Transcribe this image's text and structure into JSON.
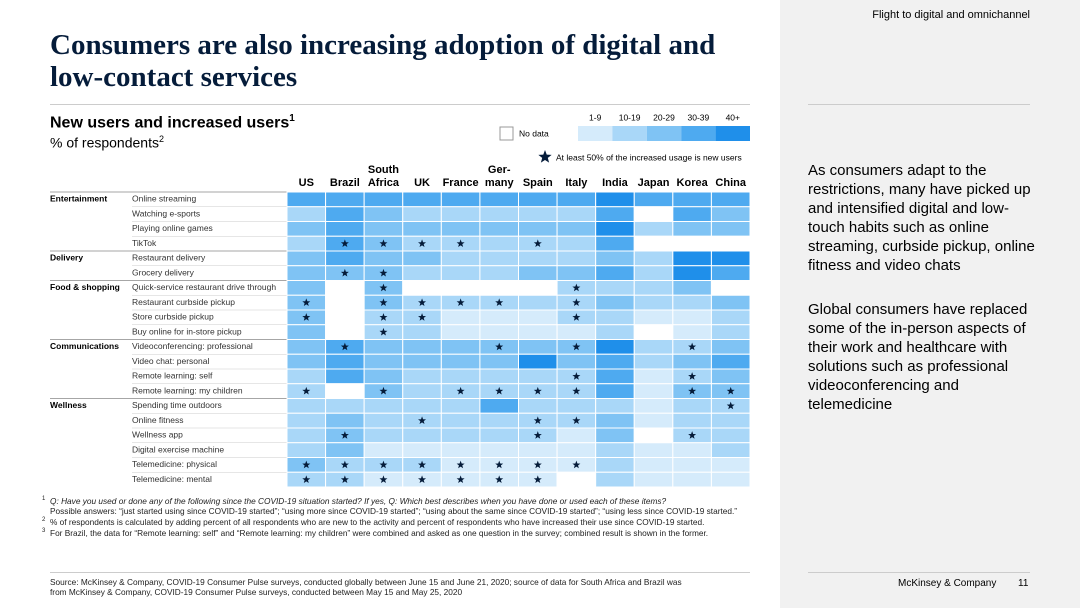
{
  "header": {
    "section": "Flight to digital and omnichannel",
    "title": "Consumers are also increasing adoption of digital and low-contact services"
  },
  "table": {
    "title": "New users and increased users",
    "title_note": "1",
    "subtitle": "% of respondents",
    "subtitle_note": "2",
    "legend": {
      "no_data": "No data",
      "star": "At least 50% of the increased usage is new users",
      "bins": [
        {
          "label": "1-9",
          "color": "#d5ebfb"
        },
        {
          "label": "10-19",
          "color": "#a9d7f8"
        },
        {
          "label": "20-29",
          "color": "#7fc3f4"
        },
        {
          "label": "30-39",
          "color": "#4eaaf0"
        },
        {
          "label": "40+",
          "color": "#1f8fea"
        }
      ]
    },
    "columns": [
      [
        "US"
      ],
      [
        "Brazil"
      ],
      [
        "South",
        "Africa"
      ],
      [
        "UK"
      ],
      [
        "France"
      ],
      [
        "Ger-",
        "many"
      ],
      [
        "Spain"
      ],
      [
        "Italy"
      ],
      [
        "India"
      ],
      [
        "Japan"
      ],
      [
        "Korea"
      ],
      [
        "China"
      ]
    ],
    "groups": [
      {
        "name": "Entertainment",
        "items": [
          {
            "label": "Online streaming",
            "levels": [
              3,
              3,
              3,
              3,
              3,
              3,
              3,
              3,
              4,
              3,
              3,
              3
            ],
            "stars": []
          },
          {
            "label": "Watching e-sports",
            "levels": [
              1,
              3,
              2,
              1,
              1,
              1,
              1,
              1,
              3,
              null,
              3,
              2
            ],
            "stars": []
          },
          {
            "label": "Playing online games",
            "levels": [
              2,
              3,
              2,
              2,
              2,
              2,
              2,
              2,
              4,
              1,
              2,
              2
            ],
            "stars": []
          },
          {
            "label": "TikTok",
            "levels": [
              1,
              3,
              2,
              1,
              1,
              1,
              1,
              1,
              3,
              null,
              null,
              null
            ],
            "stars": [
              1,
              2,
              3,
              4,
              6
            ]
          }
        ]
      },
      {
        "name": "Delivery",
        "items": [
          {
            "label": "Restaurant delivery",
            "levels": [
              2,
              3,
              2,
              2,
              1,
              1,
              1,
              1,
              2,
              1,
              4,
              4
            ],
            "stars": []
          },
          {
            "label": "Grocery delivery",
            "levels": [
              2,
              2,
              2,
              1,
              1,
              1,
              2,
              2,
              3,
              1,
              4,
              3
            ],
            "stars": [
              1,
              2
            ]
          }
        ]
      },
      {
        "name": "Food & shopping",
        "items": [
          {
            "label": "Quick-service restaurant drive through",
            "levels": [
              2,
              null,
              2,
              null,
              null,
              null,
              null,
              1,
              1,
              1,
              2,
              null
            ],
            "stars": [
              2,
              7
            ]
          },
          {
            "label": "Restaurant curbside pickup",
            "levels": [
              2,
              null,
              2,
              1,
              1,
              1,
              1,
              1,
              2,
              1,
              1,
              2
            ],
            "stars": [
              0,
              2,
              3,
              4,
              5,
              7
            ]
          },
          {
            "label": "Store curbside pickup",
            "levels": [
              2,
              null,
              1,
              1,
              0,
              0,
              0,
              1,
              1,
              0,
              0,
              1
            ],
            "stars": [
              0,
              2,
              3,
              7
            ]
          },
          {
            "label": "Buy online for in-store pickup",
            "levels": [
              2,
              null,
              1,
              1,
              0,
              0,
              0,
              0,
              1,
              null,
              0,
              1
            ],
            "stars": [
              2
            ]
          }
        ]
      },
      {
        "name": "Communications",
        "items": [
          {
            "label": "Videoconferencing: professional",
            "levels": [
              2,
              3,
              2,
              2,
              2,
              2,
              2,
              2,
              4,
              1,
              1,
              2
            ],
            "stars": [
              1,
              5,
              7,
              10
            ]
          },
          {
            "label": "Video chat: personal",
            "levels": [
              2,
              3,
              2,
              2,
              2,
              2,
              4,
              2,
              3,
              1,
              2,
              3
            ],
            "stars": []
          },
          {
            "label": "Remote learning: self",
            "levels": [
              1,
              3,
              2,
              1,
              1,
              1,
              1,
              1,
              3,
              0,
              1,
              2
            ],
            "stars": [
              7,
              10
            ]
          },
          {
            "label": "Remote learning: my children",
            "levels": [
              1,
              null,
              2,
              1,
              1,
              1,
              1,
              1,
              3,
              0,
              2,
              2
            ],
            "stars": [
              0,
              2,
              4,
              5,
              6,
              7,
              10,
              11
            ]
          }
        ]
      },
      {
        "name": "Wellness",
        "items": [
          {
            "label": "Spending time outdoors",
            "levels": [
              1,
              1,
              1,
              1,
              1,
              3,
              1,
              1,
              1,
              0,
              1,
              1
            ],
            "stars": [
              11
            ]
          },
          {
            "label": "Online fitness",
            "levels": [
              1,
              2,
              1,
              1,
              1,
              1,
              1,
              1,
              2,
              0,
              1,
              1
            ],
            "stars": [
              3,
              6,
              7
            ]
          },
          {
            "label": "Wellness app",
            "levels": [
              1,
              2,
              1,
              1,
              1,
              1,
              1,
              0,
              2,
              null,
              1,
              1
            ],
            "stars": [
              1,
              6,
              10
            ]
          },
          {
            "label": "Digital exercise machine",
            "levels": [
              1,
              2,
              0,
              0,
              0,
              0,
              0,
              0,
              1,
              0,
              0,
              1
            ],
            "stars": []
          },
          {
            "label": "Telemedicine: physical",
            "levels": [
              2,
              1,
              1,
              1,
              0,
              0,
              0,
              0,
              1,
              0,
              0,
              0
            ],
            "stars": [
              0,
              1,
              2,
              3,
              4,
              5,
              6,
              7
            ]
          },
          {
            "label": "Telemedicine: mental",
            "levels": [
              1,
              1,
              0,
              0,
              0,
              0,
              0,
              null,
              1,
              0,
              0,
              0
            ],
            "stars": [
              0,
              1,
              2,
              3,
              4,
              5,
              6
            ]
          }
        ]
      }
    ]
  },
  "footnotes": [
    {
      "marker": "1",
      "question": "Q: Have you used or done any of the following since the COVID-19 situation started? If yes, Q: Which best describes when you have done or used each of these items?",
      "text": "Possible answers: “just started using since COVID-19 started”; “using more since COVID-19 started”; “using about the same since COVID-19 started”; “using less since COVID-19 started.”"
    },
    {
      "marker": "2",
      "text": "% of respondents is calculated by adding percent of all respondents who are new to the activity and percent of respondents who have increased their use since COVID-19 started."
    },
    {
      "marker": "3",
      "text": "For Brazil, the data for “Remote learning: self” and “Remote learning: my children” were combined and asked as one question in the survey; combined result is shown in the former."
    }
  ],
  "source": "Source: McKinsey & Company, COVID-19 Consumer Pulse surveys, conducted globally between June 15 and June 21, 2020; source of data for South Africa and Brazil was from McKinsey & Company, COVID-19 Consumer Pulse surveys, conducted between May 15 and May 25, 2020",
  "sidebar": [
    "As consumers adapt to the restrictions, many have picked up and intensified digital and low-touch habits such as online streaming, curbside pickup, online fitness and video chats",
    "Global consumers have replaced some of the in-person aspects of their work and healthcare with solutions such as professional videoconferencing and telemedicine"
  ],
  "footer": {
    "brand": "McKinsey & Company",
    "page": "11"
  }
}
